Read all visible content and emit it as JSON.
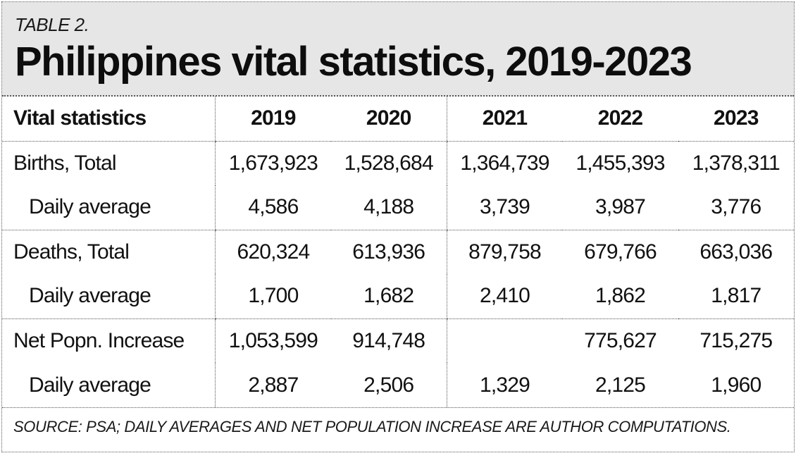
{
  "header": {
    "kicker": "TABLE 2.",
    "title": "Philippines vital statistics, 2019-2023"
  },
  "table": {
    "columns": [
      "Vital statistics",
      "2019",
      "2020",
      "2021",
      "2022",
      "2023"
    ],
    "rows": [
      {
        "label": "Births, Total",
        "values": [
          "1,673,923",
          "1,528,684",
          "1,364,739",
          "1,455,393",
          "1,378,311"
        ]
      },
      {
        "label": "Daily average",
        "values": [
          "4,586",
          "4,188",
          "3,739",
          "3,987",
          "3,776"
        ]
      },
      {
        "label": "Deaths, Total",
        "values": [
          "620,324",
          "613,936",
          "879,758",
          "679,766",
          "663,036"
        ]
      },
      {
        "label": "Daily average",
        "values": [
          "1,700",
          "1,682",
          "2,410",
          "1,862",
          "1,817"
        ]
      },
      {
        "label": "Net Popn. Increase",
        "values": [
          "1,053,599",
          "914,748",
          "",
          "775,627",
          "715,275"
        ]
      },
      {
        "label": "Daily average",
        "values": [
          "2,887",
          "2,506",
          "1,329",
          "2,125",
          "1,960"
        ]
      }
    ]
  },
  "footer": {
    "source": "SOURCE: PSA; DAILY AVERAGES AND NET POPULATION INCREASE ARE AUTHOR COMPUTATIONS."
  }
}
